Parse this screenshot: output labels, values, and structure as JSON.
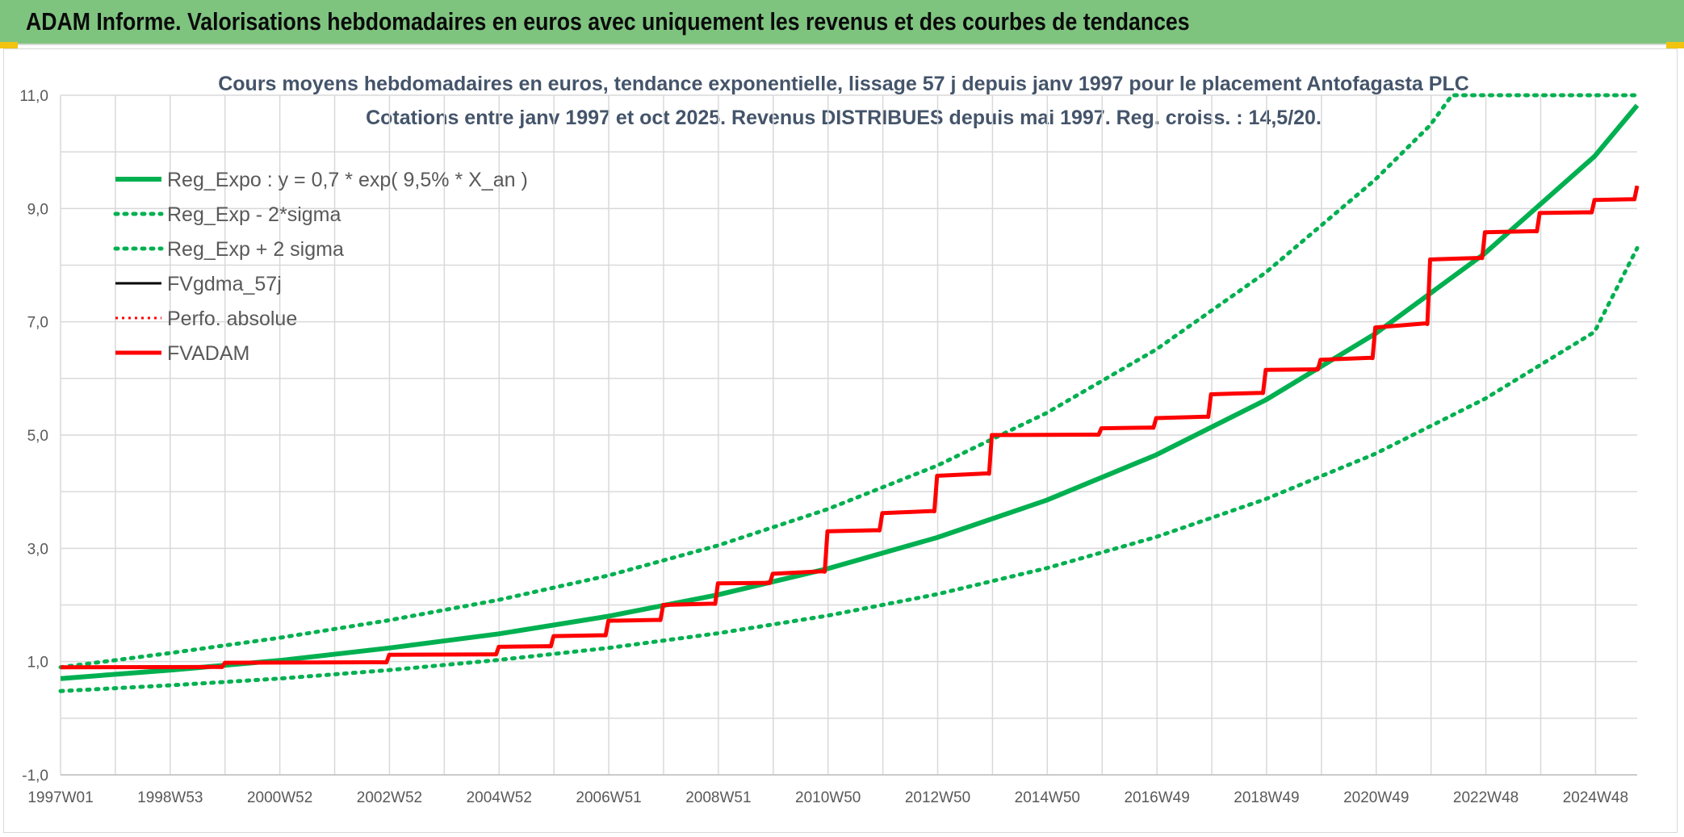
{
  "header": {
    "title": "ADAM Informe. Valorisations hebdomadaires en euros avec uniquement les revenus et des courbes de tendances"
  },
  "chart_data": {
    "type": "line",
    "title": "Cours moyens hebdomadaires en euros, tendance exponentielle, lissage 57 j depuis janv 1997 pour le placement Antofagasta PLC",
    "subtitle": "Cotations entre janv 1997 et oct 2025. Revenus DISTRIBUES depuis mai 1997. Reg. croiss. : 14,5/20.",
    "xlabel": "",
    "ylabel": "",
    "ylim": [
      -1,
      11
    ],
    "ytick_labels": [
      "-1,0",
      "1,0",
      "3,0",
      "5,0",
      "7,0",
      "9,0",
      "11,0"
    ],
    "xlim": [
      1997.0,
      2025.78
    ],
    "xtick_labels": [
      "1997W01",
      "1998W53",
      "2000W52",
      "2002W52",
      "2004W52",
      "2006W51",
      "2008W51",
      "2010W50",
      "2012W50",
      "2014W50",
      "2016W49",
      "2018W49",
      "2020W49",
      "2022W48",
      "2024W48"
    ],
    "grid": true,
    "legend_position": "top-left",
    "series": [
      {
        "name": "Reg_Expo : y = 0,7 * exp( 9,5% *  X_an )",
        "color": "#00b050",
        "style": "solid",
        "x": [
          1997,
          1999,
          2001,
          2003,
          2005,
          2007,
          2009,
          2011,
          2013,
          2015,
          2017,
          2019,
          2021,
          2023,
          2025,
          2025.78
        ],
        "y": [
          0.7,
          0.85,
          1.02,
          1.24,
          1.49,
          1.8,
          2.18,
          2.64,
          3.19,
          3.85,
          4.65,
          5.62,
          6.79,
          8.21,
          9.92,
          10.82
        ]
      },
      {
        "name": "Reg_Exp - 2*sigma",
        "color": "#00b050",
        "style": "dotted",
        "x": [
          1997,
          1999,
          2001,
          2003,
          2005,
          2007,
          2009,
          2011,
          2013,
          2015,
          2017,
          2019,
          2021,
          2023,
          2025,
          2025.78
        ],
        "y": [
          0.48,
          0.58,
          0.7,
          0.85,
          1.03,
          1.24,
          1.5,
          1.81,
          2.19,
          2.65,
          3.2,
          3.87,
          4.67,
          5.64,
          6.82,
          8.3
        ]
      },
      {
        "name": "Reg_Exp + 2 sigma",
        "color": "#00b050",
        "style": "dotted",
        "x": [
          1997,
          1999,
          2001,
          2003,
          2005,
          2007,
          2009,
          2011,
          2013,
          2015,
          2017,
          2019,
          2021,
          2022.0,
          2022.4,
          2025.78
        ],
        "y": [
          0.9,
          1.15,
          1.42,
          1.73,
          2.09,
          2.52,
          3.05,
          3.69,
          4.46,
          5.39,
          6.51,
          7.87,
          9.51,
          10.47,
          11.0,
          11.0
        ]
      },
      {
        "name": "FVgdma_57j",
        "color": "#000000",
        "style": "solid",
        "x": [
          1997,
          2000,
          2003,
          2005,
          2006,
          2007,
          2008,
          2009,
          2010,
          2011,
          2012,
          2013,
          2014,
          2016,
          2017,
          2018,
          2019,
          2020,
          2021,
          2022,
          2023,
          2024,
          2025,
          2025.78
        ],
        "y": [
          0.9,
          0.98,
          1.12,
          1.26,
          1.45,
          1.72,
          2.0,
          2.38,
          2.55,
          3.3,
          3.62,
          4.28,
          5.0,
          5.12,
          5.3,
          5.72,
          6.15,
          6.33,
          6.9,
          8.1,
          8.58,
          8.92,
          9.15,
          9.4
        ]
      },
      {
        "name": "Perfo. absolue",
        "color": "#ff0000",
        "style": "dotted",
        "x": [
          1997,
          2000,
          2003,
          2005,
          2006,
          2007,
          2008,
          2009,
          2010,
          2011,
          2012,
          2013,
          2014,
          2016,
          2017,
          2018,
          2019,
          2020,
          2021,
          2022,
          2023,
          2024,
          2025,
          2025.78
        ],
        "y": [
          0.9,
          0.98,
          1.12,
          1.26,
          1.45,
          1.72,
          2.0,
          2.38,
          2.55,
          3.3,
          3.62,
          4.28,
          5.0,
          5.12,
          5.3,
          5.72,
          6.15,
          6.33,
          6.9,
          8.1,
          8.58,
          8.92,
          9.15,
          9.4
        ]
      },
      {
        "name": "FVADAM",
        "color": "#ff0000",
        "style": "solid",
        "x": [
          1997,
          2000,
          2003,
          2005,
          2006,
          2007,
          2008,
          2009,
          2010,
          2011,
          2012,
          2013,
          2014,
          2016,
          2017,
          2018,
          2019,
          2020,
          2021,
          2022,
          2023,
          2024,
          2025,
          2025.78
        ],
        "y": [
          0.9,
          0.98,
          1.12,
          1.26,
          1.45,
          1.72,
          2.0,
          2.38,
          2.55,
          3.3,
          3.62,
          4.28,
          5.0,
          5.12,
          5.3,
          5.72,
          6.15,
          6.33,
          6.9,
          8.1,
          8.58,
          8.92,
          9.15,
          9.4
        ]
      }
    ]
  }
}
